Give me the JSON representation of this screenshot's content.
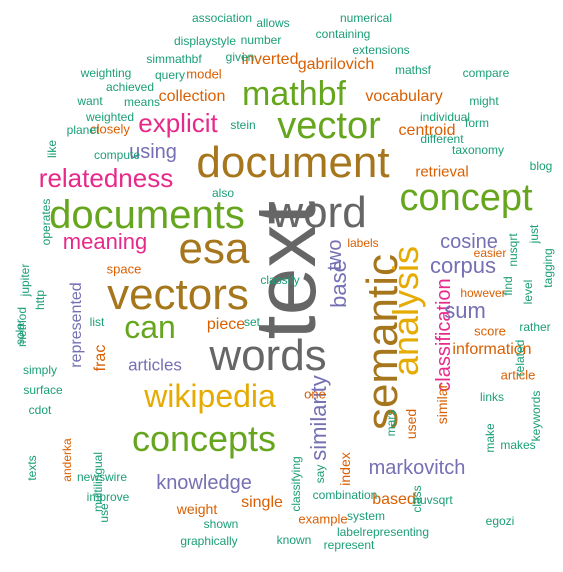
{
  "colors": {
    "brown": "#a6761d",
    "green": "#66a61e",
    "gray": "#666666",
    "olive": "#a6761d",
    "gold": "#e6ab02",
    "purple": "#7570b3",
    "magenta": "#e7298a",
    "teal": "#1b9e77",
    "orange": "#d95f02"
  },
  "words": [
    {
      "text": "text",
      "color": "gray",
      "size": 86,
      "rotate": -90
    },
    {
      "text": "document",
      "color": "olive",
      "size": 44,
      "rotate": 0
    },
    {
      "text": "word",
      "color": "gray",
      "size": 44,
      "rotate": 0
    },
    {
      "text": "semantic",
      "color": "olive",
      "size": 44,
      "rotate": -90
    },
    {
      "text": "words",
      "color": "gray",
      "size": 44,
      "rotate": 0
    },
    {
      "text": "esa",
      "color": "olive",
      "size": 44,
      "rotate": 0
    },
    {
      "text": "vectors",
      "color": "olive",
      "size": 44,
      "rotate": 0
    },
    {
      "text": "documents",
      "color": "green",
      "size": 40,
      "rotate": 0
    },
    {
      "text": "concept",
      "color": "green",
      "size": 38,
      "rotate": 0
    },
    {
      "text": "vector",
      "color": "green",
      "size": 38,
      "rotate": 0
    },
    {
      "text": "analysis",
      "color": "gold",
      "size": 36,
      "rotate": -90
    },
    {
      "text": "concepts",
      "color": "green",
      "size": 36,
      "rotate": 0
    },
    {
      "text": "mathbf",
      "color": "green",
      "size": 34,
      "rotate": 0
    },
    {
      "text": "wikipedia",
      "color": "gold",
      "size": 32,
      "rotate": 0
    },
    {
      "text": "can",
      "color": "green",
      "size": 32,
      "rotate": 0
    },
    {
      "text": "relatedness",
      "color": "magenta",
      "size": 26,
      "rotate": 0
    },
    {
      "text": "explicit",
      "color": "magenta",
      "size": 26,
      "rotate": 0
    },
    {
      "text": "similarity",
      "color": "purple",
      "size": 22,
      "rotate": -90
    },
    {
      "text": "meaning",
      "color": "magenta",
      "size": 22,
      "rotate": 0
    },
    {
      "text": "classification",
      "color": "magenta",
      "size": 20,
      "rotate": -90
    },
    {
      "text": "corpus",
      "color": "purple",
      "size": 22,
      "rotate": 0
    },
    {
      "text": "base",
      "color": "purple",
      "size": 22,
      "rotate": -90
    },
    {
      "text": "knowledge",
      "color": "purple",
      "size": 20,
      "rotate": 0
    },
    {
      "text": "markovitch",
      "color": "purple",
      "size": 20,
      "rotate": 0
    },
    {
      "text": "sum",
      "color": "purple",
      "size": 22,
      "rotate": 0
    },
    {
      "text": "cosine",
      "color": "purple",
      "size": 20,
      "rotate": 0
    },
    {
      "text": "two",
      "color": "purple",
      "size": 20,
      "rotate": -90
    },
    {
      "text": "using",
      "color": "purple",
      "size": 20,
      "rotate": 0
    },
    {
      "text": "represented",
      "color": "purple",
      "size": 16,
      "rotate": -90
    },
    {
      "text": "articles",
      "color": "purple",
      "size": 17,
      "rotate": 0
    },
    {
      "text": "information",
      "color": "orange",
      "size": 16,
      "rotate": 0
    },
    {
      "text": "centroid",
      "color": "orange",
      "size": 16,
      "rotate": 0
    },
    {
      "text": "vocabulary",
      "color": "orange",
      "size": 16,
      "rotate": 0
    },
    {
      "text": "collection",
      "color": "orange",
      "size": 16,
      "rotate": 0
    },
    {
      "text": "inverted",
      "color": "orange",
      "size": 16,
      "rotate": 0
    },
    {
      "text": "gabrilovich",
      "color": "orange",
      "size": 16,
      "rotate": 0
    },
    {
      "text": "retrieval",
      "color": "orange",
      "size": 15,
      "rotate": 0
    },
    {
      "text": "based",
      "color": "orange",
      "size": 16,
      "rotate": 0
    },
    {
      "text": "single",
      "color": "orange",
      "size": 16,
      "rotate": 0
    },
    {
      "text": "piece",
      "color": "orange",
      "size": 16,
      "rotate": 0
    },
    {
      "text": "frac",
      "color": "orange",
      "size": 16,
      "rotate": -90
    },
    {
      "text": "index",
      "color": "orange",
      "size": 14,
      "rotate": -90
    },
    {
      "text": "used",
      "color": "orange",
      "size": 14,
      "rotate": -90
    },
    {
      "text": "similar",
      "color": "orange",
      "size": 14,
      "rotate": -90
    },
    {
      "text": "weight",
      "color": "orange",
      "size": 14,
      "rotate": 0
    },
    {
      "text": "example",
      "color": "orange",
      "size": 13,
      "rotate": 0
    },
    {
      "text": "closely",
      "color": "orange",
      "size": 13,
      "rotate": 0
    },
    {
      "text": "model",
      "color": "orange",
      "size": 13,
      "rotate": 0
    },
    {
      "text": "space",
      "color": "orange",
      "size": 13,
      "rotate": 0
    },
    {
      "text": "score",
      "color": "orange",
      "size": 13,
      "rotate": 0
    },
    {
      "text": "article",
      "color": "orange",
      "size": 13,
      "rotate": 0
    },
    {
      "text": "one",
      "color": "orange",
      "size": 13,
      "rotate": 0
    },
    {
      "text": "however",
      "color": "orange",
      "size": 12,
      "rotate": 0
    },
    {
      "text": "easier",
      "color": "orange",
      "size": 12,
      "rotate": 0
    },
    {
      "text": "labels",
      "color": "orange",
      "size": 12,
      "rotate": 0
    },
    {
      "text": "anderka",
      "color": "orange",
      "size": 12,
      "rotate": -90
    },
    {
      "text": "association",
      "color": "teal",
      "size": 12,
      "rotate": 0
    },
    {
      "text": "allows",
      "color": "teal",
      "size": 12,
      "rotate": 0
    },
    {
      "text": "numerical",
      "color": "teal",
      "size": 12,
      "rotate": 0
    },
    {
      "text": "displaystyle",
      "color": "teal",
      "size": 12,
      "rotate": 0
    },
    {
      "text": "number",
      "color": "teal",
      "size": 12,
      "rotate": 0
    },
    {
      "text": "containing",
      "color": "teal",
      "size": 12,
      "rotate": 0
    },
    {
      "text": "simmathbf",
      "color": "teal",
      "size": 12,
      "rotate": 0
    },
    {
      "text": "given",
      "color": "teal",
      "size": 12,
      "rotate": 0
    },
    {
      "text": "extensions",
      "color": "teal",
      "size": 12,
      "rotate": 0
    },
    {
      "text": "weighting",
      "color": "teal",
      "size": 12,
      "rotate": 0
    },
    {
      "text": "query",
      "color": "teal",
      "size": 12,
      "rotate": 0
    },
    {
      "text": "mathsf",
      "color": "teal",
      "size": 12,
      "rotate": 0
    },
    {
      "text": "compare",
      "color": "teal",
      "size": 12,
      "rotate": 0
    },
    {
      "text": "achieved",
      "color": "teal",
      "size": 12,
      "rotate": 0
    },
    {
      "text": "might",
      "color": "teal",
      "size": 12,
      "rotate": 0
    },
    {
      "text": "want",
      "color": "teal",
      "size": 12,
      "rotate": 0
    },
    {
      "text": "means",
      "color": "teal",
      "size": 12,
      "rotate": 0
    },
    {
      "text": "weighted",
      "color": "teal",
      "size": 12,
      "rotate": 0
    },
    {
      "text": "individual",
      "color": "teal",
      "size": 12,
      "rotate": 0
    },
    {
      "text": "planet",
      "color": "teal",
      "size": 12,
      "rotate": 0
    },
    {
      "text": "stein",
      "color": "teal",
      "size": 12,
      "rotate": 0
    },
    {
      "text": "form",
      "color": "teal",
      "size": 12,
      "rotate": 0
    },
    {
      "text": "different",
      "color": "teal",
      "size": 12,
      "rotate": 0
    },
    {
      "text": "like",
      "color": "teal",
      "size": 12,
      "rotate": -90
    },
    {
      "text": "compute",
      "color": "teal",
      "size": 12,
      "rotate": 0
    },
    {
      "text": "taxonomy",
      "color": "teal",
      "size": 12,
      "rotate": 0
    },
    {
      "text": "blog",
      "color": "teal",
      "size": 12,
      "rotate": 0
    },
    {
      "text": "also",
      "color": "teal",
      "size": 12,
      "rotate": 0
    },
    {
      "text": "operates",
      "color": "teal",
      "size": 12,
      "rotate": -90
    },
    {
      "text": "just",
      "color": "teal",
      "size": 12,
      "rotate": -90
    },
    {
      "text": "nusqrt",
      "color": "teal",
      "size": 12,
      "rotate": -90
    },
    {
      "text": "tagging",
      "color": "teal",
      "size": 12,
      "rotate": -90
    },
    {
      "text": "find",
      "color": "teal",
      "size": 12,
      "rotate": -90
    },
    {
      "text": "level",
      "color": "teal",
      "size": 12,
      "rotate": -90
    },
    {
      "text": "jupiter",
      "color": "teal",
      "size": 12,
      "rotate": -90
    },
    {
      "text": "http",
      "color": "teal",
      "size": 12,
      "rotate": -90
    },
    {
      "text": "method",
      "color": "teal",
      "size": 12,
      "rotate": -90
    },
    {
      "text": "list",
      "color": "teal",
      "size": 12,
      "rotate": 0
    },
    {
      "text": "set",
      "color": "teal",
      "size": 12,
      "rotate": 0
    },
    {
      "text": "rather",
      "color": "teal",
      "size": 12,
      "rotate": 0
    },
    {
      "text": "related",
      "color": "teal",
      "size": 12,
      "rotate": -90
    },
    {
      "text": "solar",
      "color": "teal",
      "size": 12,
      "rotate": -90
    },
    {
      "text": "simply",
      "color": "teal",
      "size": 12,
      "rotate": 0
    },
    {
      "text": "surface",
      "color": "teal",
      "size": 12,
      "rotate": 0
    },
    {
      "text": "links",
      "color": "teal",
      "size": 12,
      "rotate": 0
    },
    {
      "text": "cdot",
      "color": "teal",
      "size": 12,
      "rotate": 0
    },
    {
      "text": "newswire",
      "color": "teal",
      "size": 12,
      "rotate": 0
    },
    {
      "text": "texts",
      "color": "teal",
      "size": 12,
      "rotate": -90
    },
    {
      "text": "mars",
      "color": "teal",
      "size": 12,
      "rotate": -90
    },
    {
      "text": "make",
      "color": "teal",
      "size": 12,
      "rotate": -90
    },
    {
      "text": "makes",
      "color": "teal",
      "size": 12,
      "rotate": 0
    },
    {
      "text": "keywords",
      "color": "teal",
      "size": 12,
      "rotate": -90
    },
    {
      "text": "classifying",
      "color": "teal",
      "size": 12,
      "rotate": -90
    },
    {
      "text": "say",
      "color": "teal",
      "size": 12,
      "rotate": -90
    },
    {
      "text": "class",
      "color": "teal",
      "size": 12,
      "rotate": -90
    },
    {
      "text": "egozi",
      "color": "teal",
      "size": 12,
      "rotate": 0
    },
    {
      "text": "multilingual",
      "color": "teal",
      "size": 12,
      "rotate": -90
    },
    {
      "text": "nuvsqrt",
      "color": "teal",
      "size": 12,
      "rotate": 0
    },
    {
      "text": "improve",
      "color": "teal",
      "size": 12,
      "rotate": 0
    },
    {
      "text": "combination",
      "color": "teal",
      "size": 12,
      "rotate": 0
    },
    {
      "text": "use",
      "color": "teal",
      "size": 12,
      "rotate": -90
    },
    {
      "text": "system",
      "color": "teal",
      "size": 12,
      "rotate": 0
    },
    {
      "text": "shown",
      "color": "teal",
      "size": 12,
      "rotate": 0
    },
    {
      "text": "labelrepresenting",
      "color": "teal",
      "size": 12,
      "rotate": 0
    },
    {
      "text": "graphically",
      "color": "teal",
      "size": 12,
      "rotate": 0
    },
    {
      "text": "known",
      "color": "teal",
      "size": 12,
      "rotate": 0
    },
    {
      "text": "represent",
      "color": "teal",
      "size": 12,
      "rotate": 0
    },
    {
      "text": "classify",
      "color": "teal",
      "size": 12,
      "rotate": 0
    }
  ]
}
